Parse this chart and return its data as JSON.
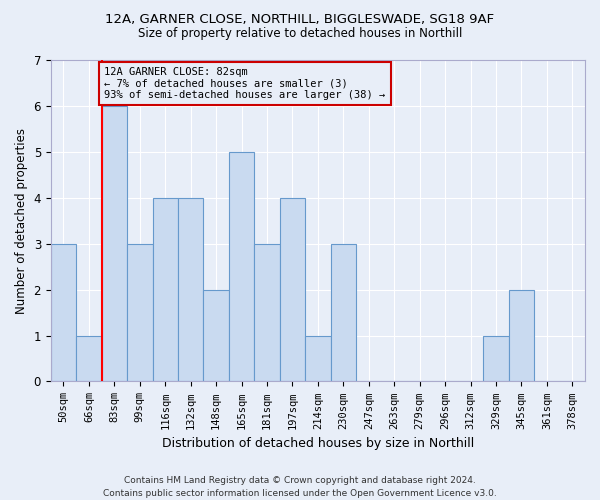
{
  "title_line1": "12A, GARNER CLOSE, NORTHILL, BIGGLESWADE, SG18 9AF",
  "title_line2": "Size of property relative to detached houses in Northill",
  "xlabel": "Distribution of detached houses by size in Northill",
  "ylabel": "Number of detached properties",
  "footer": "Contains HM Land Registry data © Crown copyright and database right 2024.\nContains public sector information licensed under the Open Government Licence v3.0.",
  "categories": [
    "50sqm",
    "66sqm",
    "83sqm",
    "99sqm",
    "116sqm",
    "132sqm",
    "148sqm",
    "165sqm",
    "181sqm",
    "197sqm",
    "214sqm",
    "230sqm",
    "247sqm",
    "263sqm",
    "279sqm",
    "296sqm",
    "312sqm",
    "329sqm",
    "345sqm",
    "361sqm",
    "378sqm"
  ],
  "values": [
    3,
    1,
    6,
    3,
    4,
    4,
    2,
    5,
    3,
    4,
    1,
    3,
    0,
    0,
    0,
    0,
    0,
    1,
    2,
    0,
    0
  ],
  "bar_color": "#c9daf0",
  "bar_edge_color": "#6699cc",
  "background_color": "#e8eef8",
  "grid_color": "#ffffff",
  "property_line_idx": 2,
  "annotation_text": "12A GARNER CLOSE: 82sqm\n← 7% of detached houses are smaller (3)\n93% of semi-detached houses are larger (38) →",
  "annotation_box_color": "#cc0000",
  "ylim": [
    0,
    7
  ],
  "yticks": [
    0,
    1,
    2,
    3,
    4,
    5,
    6,
    7
  ]
}
